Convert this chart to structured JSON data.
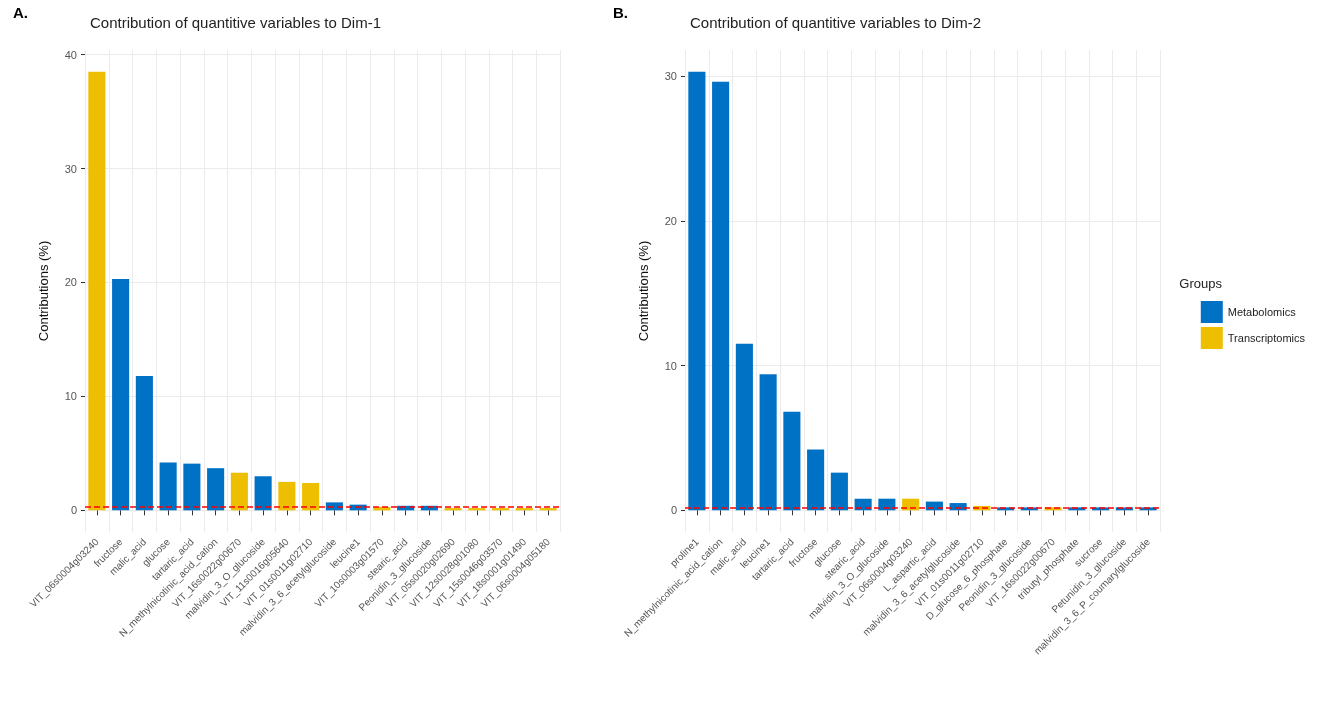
{
  "chart_data": [
    {
      "type": "bar",
      "title": "Contribution of quantitive variables to Dim-1",
      "ylabel": "Contributions (%)",
      "annotations": [
        "A."
      ],
      "categories": [
        "VIT_06s0004g03240",
        "fructose",
        "malic_acid",
        "glucose",
        "tartaric_acid",
        "N_methylnicotinic_acid_cation",
        "VIT_16s0022g00670",
        "malvidin_3_O_glucoside",
        "VIT_11s0016g05640",
        "VIT_01s0011g02710",
        "malvidin_3_6_acetylglucoside",
        "leucine1",
        "VIT_10s0003g01570",
        "stearic_acid",
        "Peonidin_3_glucoside",
        "VIT_05s0020g02690",
        "VIT_12s0028g01080",
        "VIT_15s0046g03570",
        "VIT_18s0001g01490",
        "VIT_06s0004g05180"
      ],
      "stacked": true,
      "series": [
        {
          "color": "#0072c6",
          "values": [
            null,
            20.3,
            11.8,
            4.2,
            4.1,
            3.7,
            null,
            3.0,
            null,
            null,
            0.7,
            0.5,
            null,
            0.4,
            0.4,
            null,
            null,
            null,
            null,
            null
          ]
        },
        {
          "color": "#eebf00",
          "values": [
            38.5,
            null,
            null,
            null,
            null,
            null,
            3.3,
            null,
            2.5,
            2.4,
            null,
            null,
            0.3,
            null,
            null,
            0.2,
            0.2,
            0.2,
            0.2,
            0.2
          ]
        }
      ],
      "ylim": [
        -1.9,
        40.4
      ],
      "yticks": [
        0,
        10,
        20,
        30,
        40
      ],
      "grid": true,
      "legend": false,
      "ref_lines": [
        {
          "axis": "y",
          "value": 0.3,
          "color": "#ff0000",
          "line_style": "dashed"
        }
      ]
    },
    {
      "type": "bar",
      "title": "Contribution of quantitive variables to Dim-2",
      "ylabel": "Contributions (%)",
      "annotations": [
        "B."
      ],
      "legend_title": "Groups",
      "categories": [
        "proline1",
        "N_methylnicotinic_acid_cation",
        "malic_acid",
        "leucine1",
        "tartaric_acid",
        "fructose",
        "glucose",
        "stearic_acid",
        "malvidin_3_O_glucoside",
        "VIT_06s0004g03240",
        "L_aspartic_acid",
        "malvidin_3_6_acetylglucoside",
        "VIT_01s0011g02710",
        "D_glucose_6_phosphate",
        "Peonidin_3_glucoside",
        "VIT_16s0022g00670",
        "tributyl_phosphate",
        "sucrose",
        "Petunidin_3_glucoside",
        "malvidin_3_6_P_coumarylglucoside"
      ],
      "stacked": true,
      "series": [
        {
          "name": "Metabolomics",
          "color": "#0072c6",
          "values": [
            30.3,
            29.6,
            11.5,
            9.4,
            6.8,
            4.2,
            2.6,
            0.8,
            0.8,
            null,
            0.6,
            0.5,
            null,
            0.2,
            0.2,
            null,
            0.2,
            0.2,
            0.2,
            0.2
          ]
        },
        {
          "name": "Transcriptomics",
          "color": "#eebf00",
          "values": [
            null,
            null,
            null,
            null,
            null,
            null,
            null,
            null,
            null,
            0.8,
            null,
            null,
            0.3,
            null,
            null,
            0.2,
            null,
            null,
            null,
            null
          ]
        }
      ],
      "ylim": [
        -1.5,
        31.8
      ],
      "yticks": [
        0,
        10,
        20,
        30
      ],
      "grid": true,
      "legend": "right",
      "ref_lines": [
        {
          "axis": "y",
          "value": 0.2,
          "color": "#ff0000",
          "line_style": "dashed"
        }
      ]
    }
  ]
}
